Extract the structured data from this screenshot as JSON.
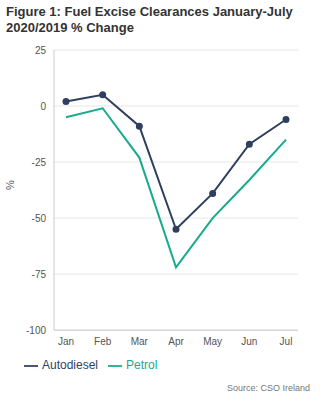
{
  "chart_data": {
    "type": "line",
    "title": "Figure 1: Fuel Excise Clearances January-July 2020/2019 % Change",
    "y_label": "%",
    "source": "Source: CSO Ireland",
    "categories": [
      "Jan",
      "Feb",
      "Mar",
      "Apr",
      "May",
      "Jun",
      "Jul"
    ],
    "series": [
      {
        "name": "Autodiesel",
        "color": "#2e3f5f",
        "marker": "circle",
        "values": [
          2,
          5,
          -9,
          -55,
          -39,
          -17,
          -6
        ]
      },
      {
        "name": "Petrol",
        "color": "#1aaa8c",
        "marker": "none",
        "values": [
          -5,
          -1,
          -23,
          -72,
          -50,
          -33,
          -15
        ]
      }
    ],
    "ylim": [
      -100,
      25
    ],
    "yticks": [
      -100,
      -75,
      -50,
      -25,
      0,
      25
    ],
    "grid": true,
    "legend": "bottom"
  }
}
